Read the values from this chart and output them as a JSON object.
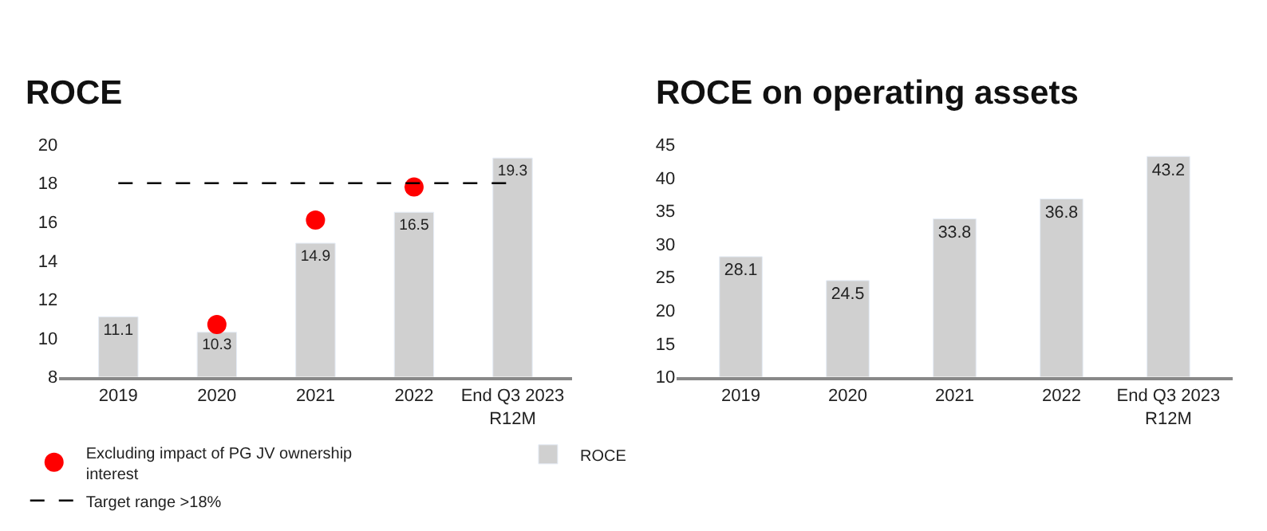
{
  "chart_data": [
    {
      "type": "bar",
      "title": "ROCE",
      "categories": [
        "2019",
        "2020",
        "2021",
        "2022",
        "End Q3 2023 R12M"
      ],
      "series": [
        {
          "name": "ROCE",
          "color": "#d0d0d0",
          "values": [
            11.1,
            10.3,
            14.9,
            16.5,
            19.3
          ],
          "value_labels": [
            "11.1",
            "10.3",
            "14.9",
            "16.5",
            "19.3"
          ]
        },
        {
          "type": "scatter",
          "name": "Excluding impact of PG JV ownership interest",
          "color": "#ff0000",
          "values": [
            null,
            10.7,
            16.1,
            17.8,
            null
          ]
        }
      ],
      "ref_lines": [
        {
          "axis": "y",
          "value": 18,
          "label": "Target range >18%",
          "line_style": "dashed",
          "color": "#000000"
        }
      ],
      "ylim": [
        8,
        20
      ],
      "yticks": [
        8,
        10,
        12,
        14,
        16,
        18,
        20
      ],
      "grid": false,
      "legend": "bottom",
      "marker": "circle"
    },
    {
      "type": "bar",
      "title": "ROCE on operating assets",
      "categories": [
        "2019",
        "2020",
        "2021",
        "2022",
        "End Q3 2023 R12M"
      ],
      "series": [
        {
          "color": "#d0d0d0",
          "values": [
            28.1,
            24.5,
            33.8,
            36.8,
            43.2
          ],
          "value_labels": [
            "28.1",
            "24.5",
            "33.8",
            "36.8",
            "43.2"
          ]
        }
      ],
      "ylim": [
        10,
        45
      ],
      "yticks": [
        10,
        15,
        20,
        25,
        30,
        35,
        40,
        45
      ],
      "grid": false
    }
  ]
}
